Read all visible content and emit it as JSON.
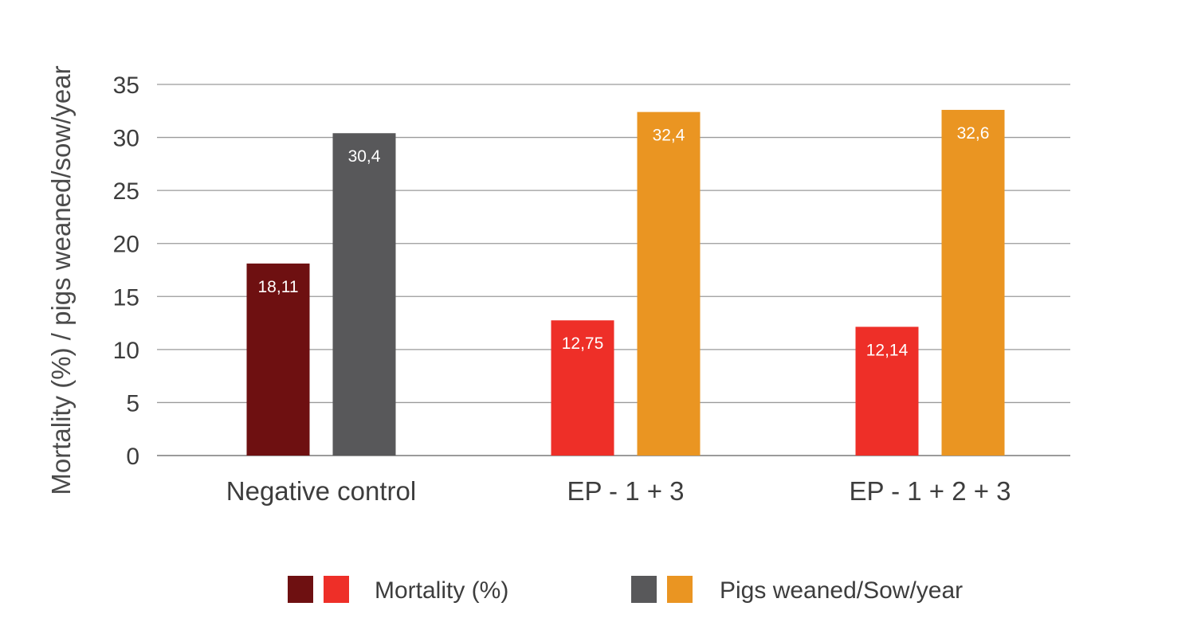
{
  "chart_data": {
    "type": "bar",
    "categories": [
      "Negative control",
      "EP - 1 + 3",
      "EP - 1 + 2 + 3"
    ],
    "series": [
      {
        "name": "Mortality (%)",
        "values": [
          18.11,
          12.75,
          12.14
        ],
        "labels": [
          "18,11",
          "12,75",
          "12,14"
        ],
        "colors": [
          "#6e1011",
          "#ee2f28",
          "#ee2f28"
        ]
      },
      {
        "name": "Pigs weaned/Sow/year",
        "values": [
          30.4,
          32.4,
          32.6
        ],
        "labels": [
          "30,4",
          "32,4",
          "32,6"
        ],
        "colors": [
          "#58585a",
          "#ea9522",
          "#ea9522"
        ]
      }
    ],
    "title": "",
    "xlabel": "",
    "ylabel": "Mortality (%) / pigs weaned/sow/year",
    "ylim": [
      0,
      35
    ],
    "yticks": [
      "0",
      "5",
      "10",
      "15",
      "20",
      "25",
      "30",
      "35"
    ],
    "grid": true,
    "legend": {
      "position": "bottom",
      "entries": [
        {
          "label": "Mortality (%)",
          "swatches": [
            "#6e1011",
            "#ee2f28"
          ]
        },
        {
          "label": "Pigs weaned/Sow/year",
          "swatches": [
            "#58585a",
            "#ea9522"
          ]
        }
      ]
    }
  }
}
